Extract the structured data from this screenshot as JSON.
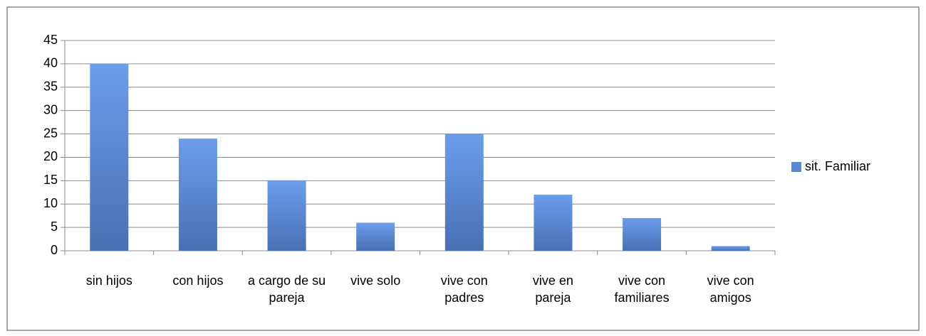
{
  "chart_data": {
    "type": "bar",
    "categories": [
      "sin hijos",
      "con hijos",
      "a cargo de su pareja",
      "vive solo",
      "vive con padres",
      "vive en pareja",
      "vive con familiares",
      "vive con amigos"
    ],
    "series": [
      {
        "name": "sit. Familiar",
        "color": "#5b87d6",
        "values": [
          40,
          24,
          15,
          6,
          25,
          12,
          7,
          1
        ]
      }
    ],
    "ylim": [
      0,
      45
    ],
    "yticks": [
      0,
      5,
      10,
      15,
      20,
      25,
      30,
      35,
      40,
      45
    ],
    "grid": true,
    "legend": "right"
  }
}
